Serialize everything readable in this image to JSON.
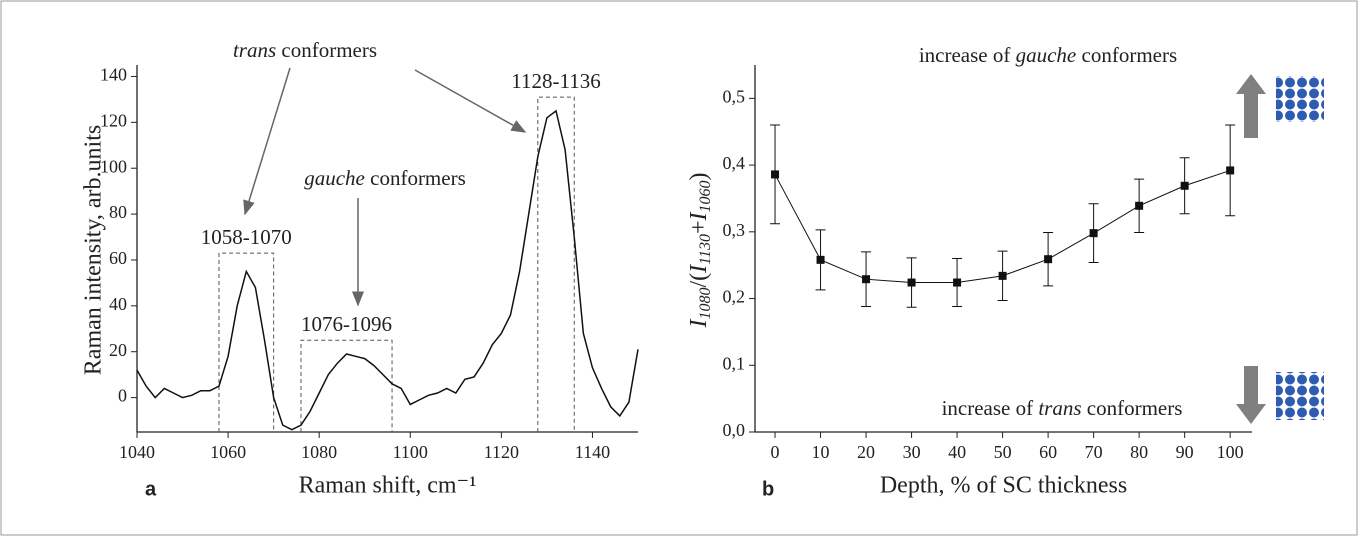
{
  "chart_data": [
    {
      "type": "line",
      "panel": "a",
      "xlabel": "Raman shift, cm⁻¹",
      "ylabel": "Raman intensity, arb.units",
      "x": [
        1040,
        1042,
        1044,
        1046,
        1048,
        1050,
        1052,
        1054,
        1056,
        1058,
        1060,
        1062,
        1064,
        1066,
        1068,
        1070,
        1072,
        1074,
        1076,
        1078,
        1080,
        1082,
        1084,
        1086,
        1088,
        1090,
        1092,
        1094,
        1096,
        1098,
        1100,
        1102,
        1104,
        1106,
        1108,
        1110,
        1112,
        1114,
        1116,
        1118,
        1120,
        1122,
        1124,
        1126,
        1128,
        1130,
        1132,
        1134,
        1136,
        1138,
        1140,
        1142,
        1144,
        1146,
        1148,
        1150
      ],
      "values": [
        12,
        5,
        0,
        4,
        2,
        0,
        1,
        3,
        3,
        5,
        18,
        40,
        55,
        48,
        25,
        0,
        -12,
        -14,
        -12,
        -6,
        2,
        10,
        15,
        19,
        18,
        17,
        14,
        10,
        6,
        4,
        -3,
        -1,
        1,
        2,
        4,
        2,
        8,
        9,
        15,
        23,
        28,
        36,
        55,
        80,
        105,
        122,
        125,
        108,
        70,
        28,
        13,
        4,
        -4,
        -8,
        -2,
        21
      ],
      "color": "#111111",
      "xlim": [
        1040,
        1150
      ],
      "ylim": [
        -15,
        145
      ],
      "xticks": [
        1040,
        1060,
        1080,
        1100,
        1120,
        1140
      ],
      "yticks": [
        0,
        20,
        40,
        60,
        80,
        100,
        120,
        140
      ],
      "regions": [
        {
          "label": "1058-1070",
          "x0": 1058,
          "x1": 1070,
          "top": 63
        },
        {
          "label": "1076-1096",
          "x0": 1076,
          "x1": 1096,
          "top": 25
        },
        {
          "label": "1128-1136",
          "x0": 1128,
          "x1": 1136,
          "top": 131
        }
      ],
      "annotations": [
        {
          "emph": "trans",
          "rest": " conformers"
        },
        {
          "emph": "gauche",
          "rest": " conformers"
        }
      ]
    },
    {
      "type": "errorline",
      "panel": "b",
      "xlabel": "Depth, % of SC thickness",
      "ylabel": [
        {
          "text": "I",
          "sub": false
        },
        {
          "text": "1080",
          "sub": true
        },
        {
          "text": "/(",
          "sub": false
        },
        {
          "text": "I",
          "sub": false
        },
        {
          "text": "1130",
          "sub": true
        },
        {
          "text": "+",
          "sub": false
        },
        {
          "text": "I",
          "sub": false
        },
        {
          "text": "1060",
          "sub": true
        },
        {
          "text": ")",
          "sub": false
        }
      ],
      "x": [
        0,
        10,
        20,
        30,
        40,
        50,
        60,
        70,
        80,
        90,
        100
      ],
      "values": [
        0.386,
        0.258,
        0.229,
        0.224,
        0.224,
        0.234,
        0.259,
        0.298,
        0.339,
        0.369,
        0.392
      ],
      "errors": [
        0.074,
        0.045,
        0.041,
        0.037,
        0.036,
        0.037,
        0.04,
        0.044,
        0.04,
        0.042,
        0.068
      ],
      "color": "#111111",
      "xlim": [
        -4.4,
        104.8
      ],
      "ylim": [
        0,
        0.55
      ],
      "xticks": [
        0,
        10,
        20,
        30,
        40,
        50,
        60,
        70,
        80,
        90,
        100
      ],
      "yticks": [
        {
          "value": 0,
          "label": "0,0"
        },
        {
          "value": 0.1,
          "label": "0,1"
        },
        {
          "value": 0.2,
          "label": "0,2"
        },
        {
          "value": 0.3,
          "label": "0,3"
        },
        {
          "value": 0.4,
          "label": "0,4"
        },
        {
          "value": 0.5,
          "label": "0,5"
        }
      ],
      "annotations": [
        {
          "pre": "increase of ",
          "emph": "gauche",
          "rest": " conformers"
        },
        {
          "pre": "increase of ",
          "emph": "trans",
          "rest": " conformers"
        }
      ]
    }
  ]
}
